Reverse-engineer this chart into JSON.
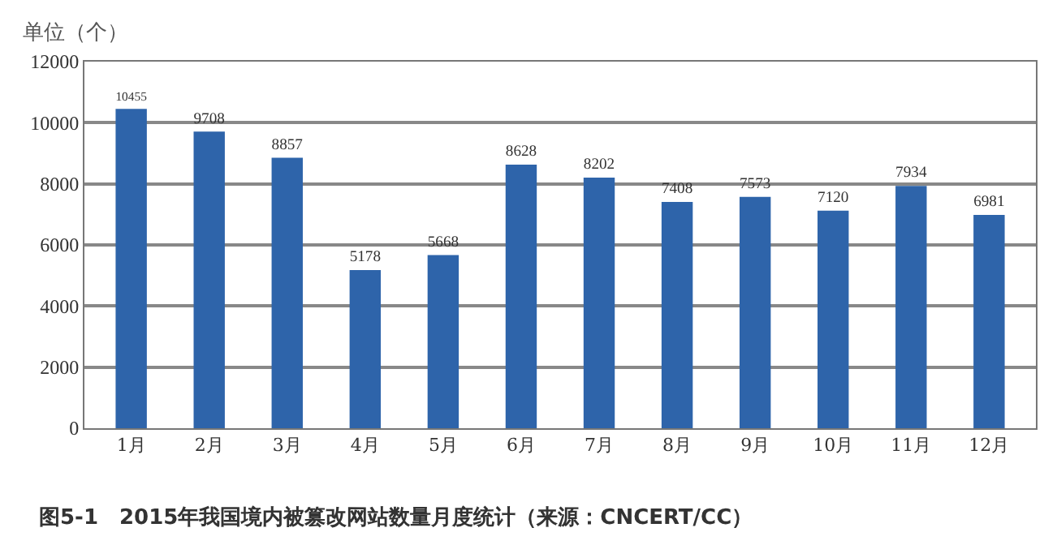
{
  "chart_data": {
    "type": "bar",
    "title": "图5-1　2015年我国境内被篡改网站数量月度统计（来源：CNCERT/CC）",
    "ylabel": "单位（个）",
    "categories": [
      "1月",
      "2月",
      "3月",
      "4月",
      "5月",
      "6月",
      "7月",
      "8月",
      "9月",
      "10月",
      "11月",
      "12月"
    ],
    "values": [
      10455,
      9708,
      8857,
      5178,
      5668,
      8628,
      8202,
      7408,
      7573,
      7120,
      7934,
      6981
    ],
    "color": "#2e64aa",
    "ylim": [
      0,
      12000
    ],
    "yticks": [
      0,
      2000,
      4000,
      6000,
      8000,
      10000,
      12000
    ],
    "grid": "y",
    "data_labels": true,
    "legend": false
  }
}
